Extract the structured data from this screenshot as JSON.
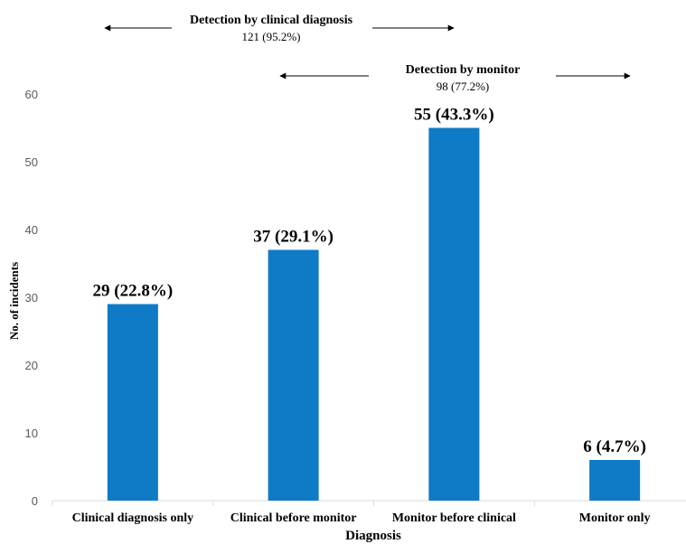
{
  "chart_data": {
    "type": "bar",
    "categories": [
      "Clinical diagnosis only",
      "Clinical before monitor",
      "Monitor before clinical",
      "Monitor only"
    ],
    "values": [
      29,
      37,
      55,
      6
    ],
    "data_labels": [
      "29 (22.8%)",
      "37 (29.1%)",
      "55 (43.3%)",
      "6 (4.7%)"
    ],
    "xlabel": "Diagnosis",
    "ylabel": "No. of incidents",
    "ylim": [
      0,
      60
    ],
    "yticks": [
      0,
      10,
      20,
      30,
      40,
      50,
      60
    ],
    "grid": false,
    "bar_color": "#0f7ac6",
    "annotations": [
      {
        "title": "Detection by clinical diagnosis",
        "value": "121 (95.2%)"
      },
      {
        "title": "Detection by monitor",
        "value": "98 (77.2%)"
      }
    ]
  }
}
